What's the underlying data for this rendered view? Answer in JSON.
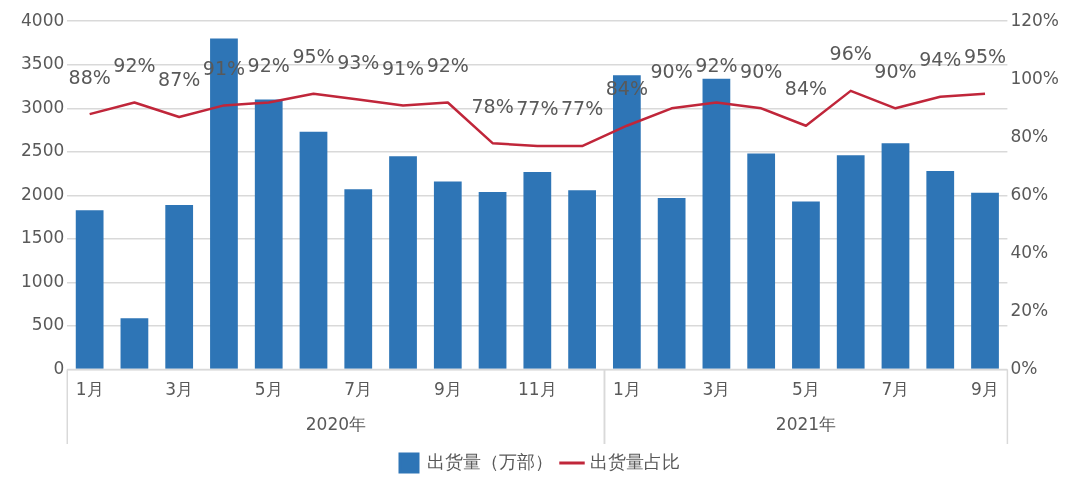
{
  "chart_data": {
    "type": "bar",
    "categories": [
      "1月",
      null,
      "3月",
      null,
      "5月",
      null,
      "7月",
      null,
      "9月",
      null,
      "11月",
      null,
      "1月",
      null,
      "3月",
      null,
      "5月",
      null,
      "7月",
      null,
      "9月"
    ],
    "series": [
      {
        "name": "出货量（万部）",
        "color": "#2e75b6",
        "values": [
          1830,
          590,
          1890,
          3800,
          3100,
          2730,
          2070,
          2450,
          2160,
          2040,
          2270,
          2060,
          3380,
          1970,
          3340,
          2480,
          1930,
          2460,
          2600,
          2280,
          2030
        ]
      },
      {
        "name": "出货量占比",
        "type": "line",
        "axis": "y2",
        "color": "#c0263a",
        "values": [
          88,
          92,
          87,
          91,
          92,
          95,
          93,
          91,
          92,
          78,
          77,
          77,
          84,
          90,
          92,
          90,
          84,
          96,
          90,
          94,
          95
        ],
        "value_labels": [
          "88%",
          "92%",
          "87%",
          "91%",
          "92%",
          "95%",
          "93%",
          "91%",
          "92%",
          "78%",
          "77%",
          "77%",
          "84%",
          "90%",
          "92%",
          "90%",
          "84%",
          "96%",
          "90%",
          "94%",
          "95%"
        ]
      }
    ],
    "ylim": [
      0,
      4000
    ],
    "yticks": [
      0,
      500,
      1000,
      1500,
      2000,
      2500,
      3000,
      3500,
      4000
    ],
    "y2lim": [
      0,
      120
    ],
    "y2ticks": [
      {
        "value": 0,
        "label": "0%"
      },
      {
        "value": 20,
        "label": "20%"
      },
      {
        "value": 40,
        "label": "40%"
      },
      {
        "value": 60,
        "label": "60%"
      },
      {
        "value": 80,
        "label": "80%"
      },
      {
        "value": 100,
        "label": "100%"
      },
      {
        "value": 120,
        "label": "120%"
      }
    ],
    "annotations": [
      "2020年",
      "2021年"
    ],
    "grid": "y",
    "legend": "bottom",
    "marker": "none",
    "line_style": "solid"
  }
}
